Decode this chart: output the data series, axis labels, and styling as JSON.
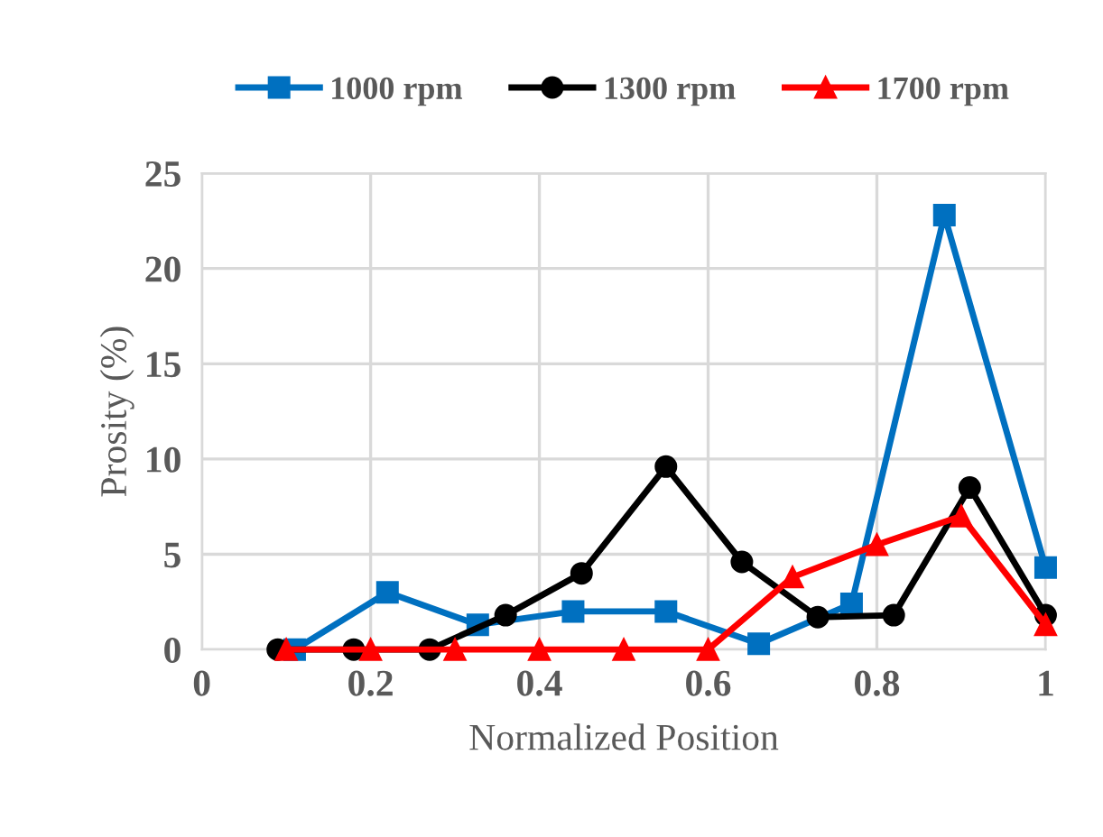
{
  "chart_data": {
    "type": "line",
    "xlabel": "Normalized Position",
    "ylabel": "Prosity (%)",
    "xlim": [
      0,
      1
    ],
    "xticks": [
      0,
      0.2,
      0.4,
      0.6,
      0.8,
      1
    ],
    "ylim": [
      0,
      25
    ],
    "yticks": [
      0,
      5,
      10,
      15,
      20,
      25
    ],
    "grid": true,
    "legend": "top",
    "line_style": "solid",
    "series": [
      {
        "name": "1000 rpm",
        "color": "#0070c0",
        "marker": "square",
        "x": [
          0.11,
          0.22,
          0.327,
          0.44,
          0.55,
          0.66,
          0.77,
          0.88,
          1.0
        ],
        "values": [
          0,
          3.0,
          1.3,
          2.0,
          2.0,
          0.3,
          2.4,
          22.8,
          4.3
        ]
      },
      {
        "name": "1300 rpm",
        "color": "#000000",
        "marker": "circle",
        "x": [
          0.09,
          0.18,
          0.27,
          0.36,
          0.45,
          0.55,
          0.64,
          0.73,
          0.82,
          0.91,
          1.0
        ],
        "values": [
          0,
          0,
          0,
          1.8,
          4.0,
          9.6,
          4.6,
          1.7,
          1.8,
          8.5,
          1.8
        ]
      },
      {
        "name": "1700 rpm",
        "color": "#ff0000",
        "marker": "triangle",
        "x": [
          0.1,
          0.2,
          0.3,
          0.4,
          0.5,
          0.6,
          0.7,
          0.8,
          0.9,
          1.0
        ],
        "values": [
          0,
          0,
          0,
          0,
          0,
          0,
          3.8,
          5.5,
          7.0,
          1.3
        ]
      }
    ]
  }
}
